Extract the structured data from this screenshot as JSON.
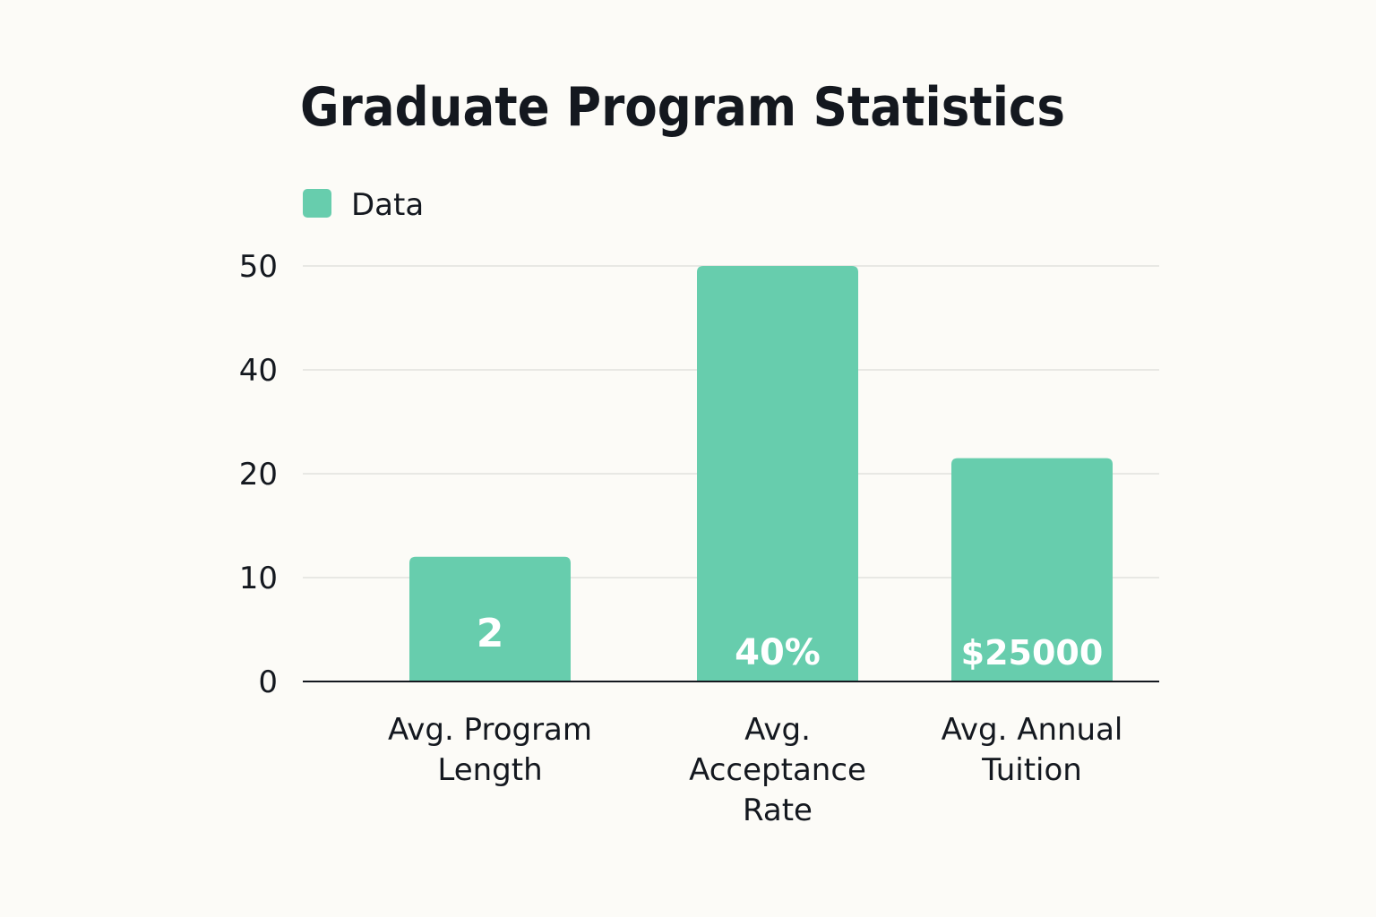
{
  "chart_data": {
    "type": "bar",
    "title": "Graduate Program Statistics",
    "legend": [
      {
        "name": "Data",
        "color": "#67cdad"
      }
    ],
    "legend_position": "top-left",
    "categories": [
      [
        "Avg. Program",
        "Length"
      ],
      [
        "Avg.",
        "Acceptance",
        "Rate"
      ],
      [
        "Avg. Annual",
        "Tuition"
      ]
    ],
    "series": [
      {
        "name": "Data",
        "values": [
          12,
          50,
          23
        ],
        "labels": [
          "2",
          "40%",
          "$25000"
        ]
      }
    ],
    "y_ticks": [
      0,
      10,
      20,
      40,
      50
    ],
    "grid": true,
    "bar_color": "#67cdad",
    "axis_color": "#14181f",
    "grid_color": "#e8e8e4"
  }
}
